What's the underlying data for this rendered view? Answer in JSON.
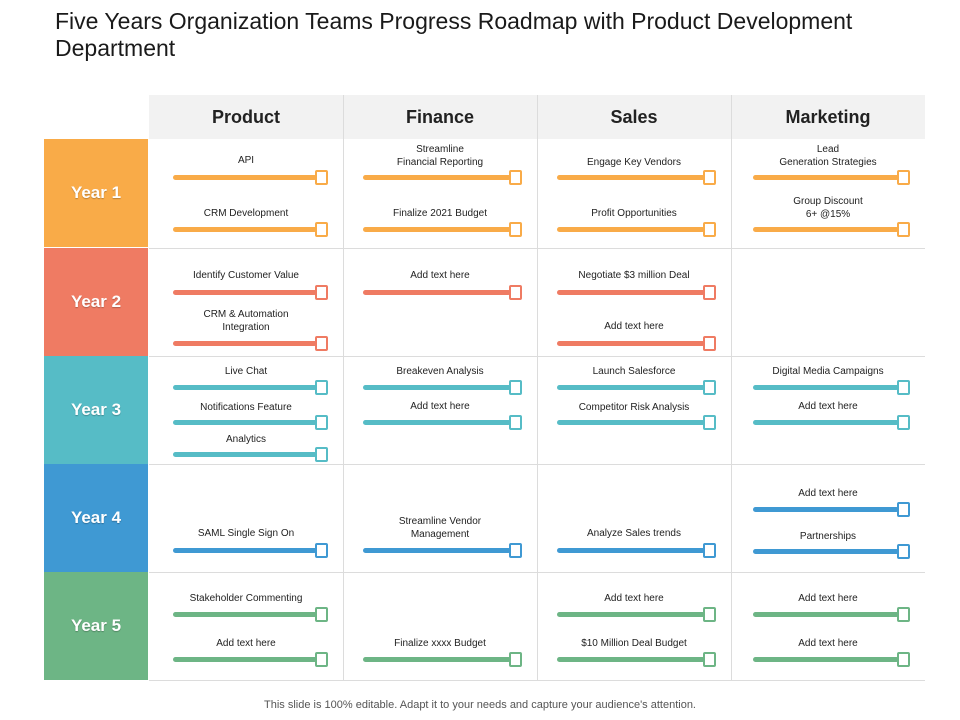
{
  "title": "Five Years Organization Teams Progress Roadmap with Product Development Department",
  "footer": "This slide is 100% editable. Adapt it to your needs and capture your audience's attention.",
  "columns": [
    "Product",
    "Finance",
    "Sales",
    "Marketing"
  ],
  "years": [
    {
      "label": "Year 1",
      "color": "#f9ab48",
      "cells": [
        [
          "API",
          "CRM  Development"
        ],
        [
          "Streamline\nFinancial Reporting",
          "Finalize 2021 Budget"
        ],
        [
          "Engage Key Vendors",
          "Profit Opportunities"
        ],
        [
          "Lead\nGeneration Strategies",
          "Group Discount\n6+ @15%"
        ]
      ]
    },
    {
      "label": "Year 2",
      "color": "#ef7b63",
      "cells": [
        [
          "Identify Customer Value",
          "CRM  & Automation\nIntegration"
        ],
        [
          "Add text here"
        ],
        [
          "Negotiate $3 million  Deal",
          "Add text here"
        ],
        []
      ]
    },
    {
      "label": "Year 3",
      "color": "#56bcc6",
      "cells": [
        [
          "Live Chat",
          "Notifications Feature",
          "Analytics"
        ],
        [
          "Breakeven Analysis",
          "Add text here"
        ],
        [
          "Launch Salesforce",
          "Competitor Risk Analysis"
        ],
        [
          "Digital Media Campaigns",
          "Add text here"
        ]
      ]
    },
    {
      "label": "Year 4",
      "color": "#3f99d3",
      "cells": [
        [
          "SAML Single Sign On"
        ],
        [
          "Streamline  Vendor\nManagement"
        ],
        [
          "Analyze Sales trends"
        ],
        [
          "Add text here",
          "Partnerships"
        ]
      ]
    },
    {
      "label": "Year 5",
      "color": "#6db585",
      "cells": [
        [
          "Stakeholder Commenting",
          "Add text here"
        ],
        [
          "Finalize  xxxx Budget"
        ],
        [
          "Add text here",
          "$10 Million  Deal Budget"
        ],
        [
          "Add text here",
          "Add text here"
        ]
      ]
    }
  ]
}
